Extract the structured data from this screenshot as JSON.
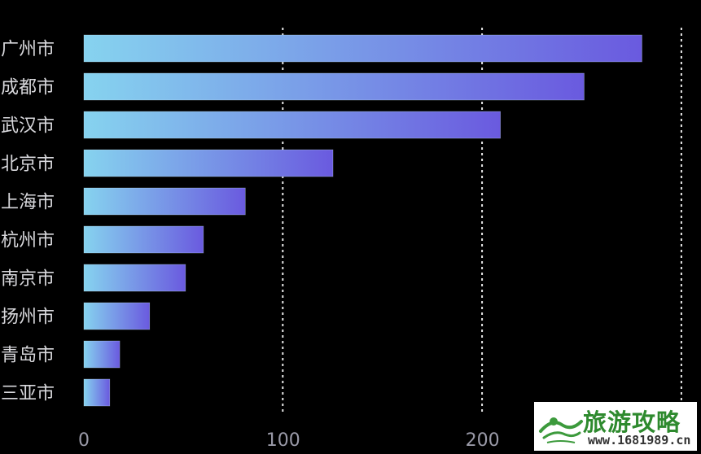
{
  "chart_data": {
    "type": "bar",
    "orientation": "horizontal",
    "categories": [
      "广州市",
      "成都市",
      "武汉市",
      "北京市",
      "上海市",
      "杭州市",
      "南京市",
      "扬州市",
      "青岛市",
      "三亚市"
    ],
    "values": [
      280,
      251,
      209,
      125,
      81,
      60,
      51,
      33,
      18,
      13
    ],
    "xticks": [
      0,
      100,
      200
    ],
    "xlim": [
      0,
      300
    ],
    "grid": "vertical dashed",
    "title": "",
    "xlabel": "",
    "ylabel": "",
    "colors": {
      "bar_start": "#86d3ef",
      "bar_end": "#6a5adf",
      "grid": "#e8e8e8",
      "background": "#000000"
    }
  },
  "watermark": {
    "title": "旅游攻略",
    "url": "www.1681989.cn"
  }
}
